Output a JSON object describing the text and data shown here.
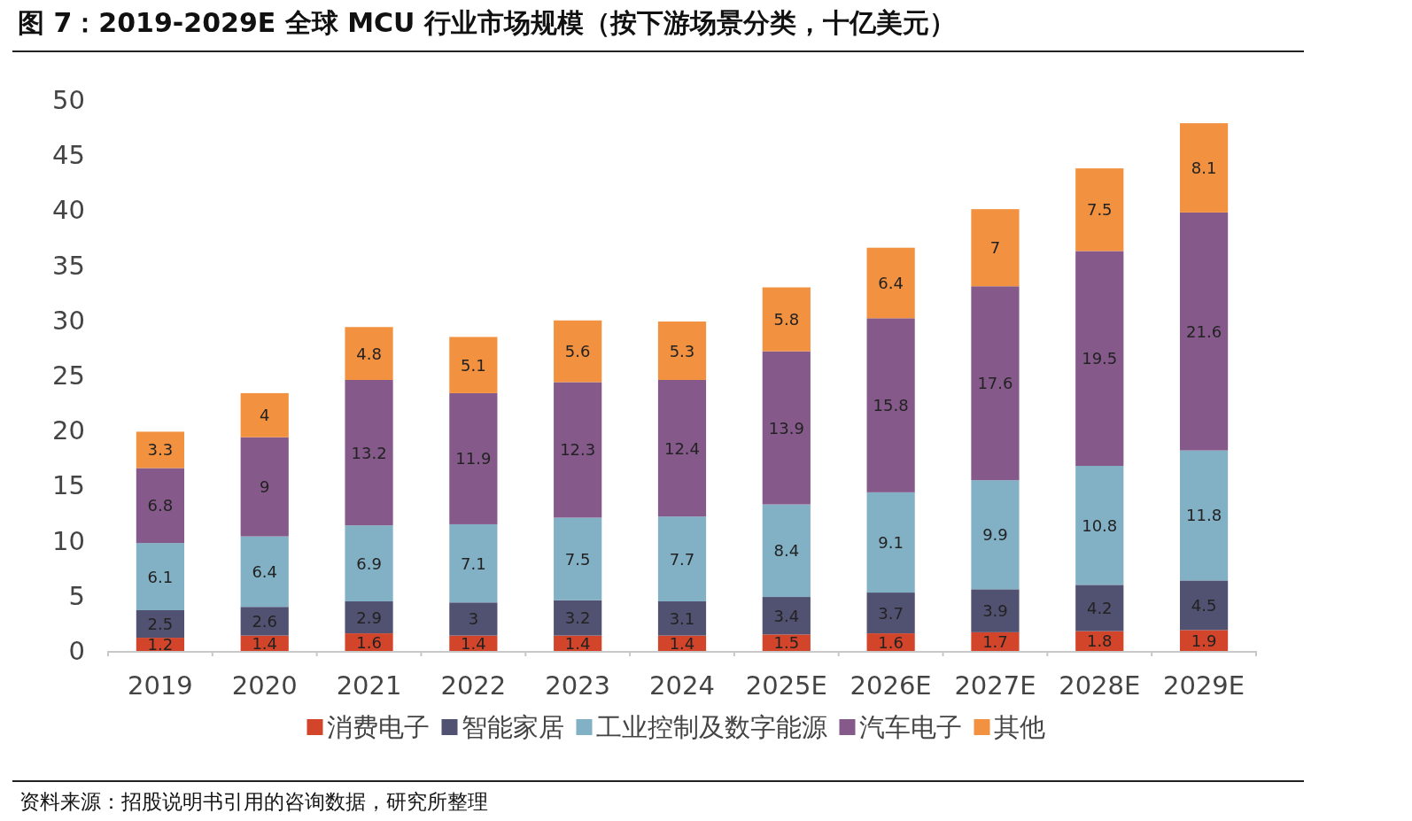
{
  "chart_data": {
    "type": "bar",
    "stacked": true,
    "title": "图 7：2019-2029E 全球 MCU 行业市场规模（按下游场景分类，十亿美元）",
    "categories": [
      "2019",
      "2020",
      "2021",
      "2022",
      "2023",
      "2024",
      "2025E",
      "2026E",
      "2027E",
      "2028E",
      "2029E"
    ],
    "series": [
      {
        "name": "消费电子",
        "color": "#d2452a",
        "values": [
          1.2,
          1.4,
          1.6,
          1.4,
          1.4,
          1.4,
          1.5,
          1.6,
          1.7,
          1.8,
          1.9
        ]
      },
      {
        "name": "智能家居",
        "color": "#515171",
        "values": [
          2.5,
          2.6,
          2.9,
          3,
          3.2,
          3.1,
          3.4,
          3.7,
          3.9,
          4.2,
          4.5
        ]
      },
      {
        "name": "工业控制及数字能源",
        "color": "#82b0c5",
        "values": [
          6.1,
          6.4,
          6.9,
          7.1,
          7.5,
          7.7,
          8.4,
          9.1,
          9.9,
          10.8,
          11.8
        ]
      },
      {
        "name": "汽车电子",
        "color": "#855a8b",
        "values": [
          6.8,
          9,
          13.2,
          11.9,
          12.3,
          12.4,
          13.9,
          15.8,
          17.6,
          19.5,
          21.6
        ]
      },
      {
        "name": "其他",
        "color": "#f2913f",
        "values": [
          3.3,
          4,
          4.8,
          5.1,
          5.6,
          5.3,
          5.8,
          6.4,
          7,
          7.5,
          8.1
        ]
      }
    ],
    "ylim": [
      0,
      50
    ],
    "yticks": [
      0,
      5,
      10,
      15,
      20,
      25,
      30,
      35,
      40,
      45,
      50
    ],
    "data_labels": true,
    "legend": "bottom",
    "grid": false,
    "annotations": [
      "资料来源：招股说明书引用的咨询数据，研究所整理"
    ]
  }
}
